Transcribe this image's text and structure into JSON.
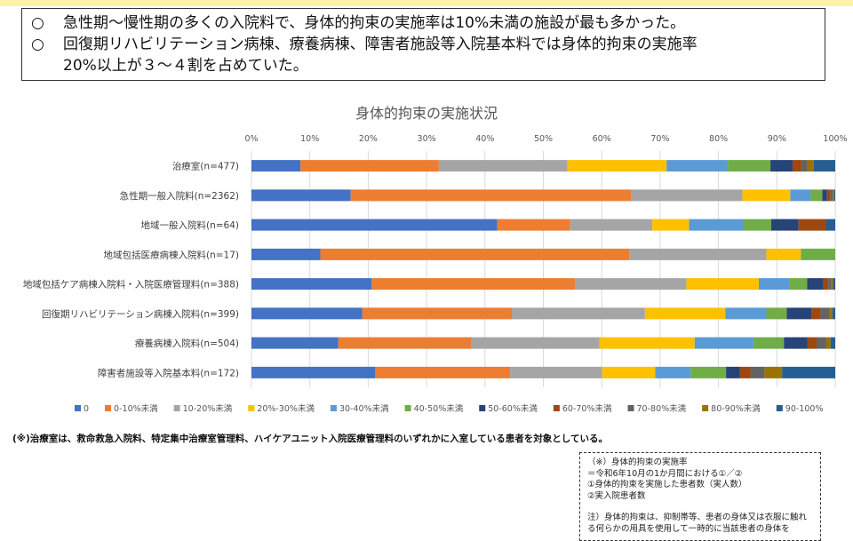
{
  "summary": {
    "bullet": "○",
    "line1": "急性期～慢性期の多くの入院料で、身体的拘束の実施率は10%未満の施設が最も多かった。",
    "line2": "回復期リハビリテーション病棟、療養病棟、障害者施設等入院基本料では身体的拘束の実施率",
    "line3": "20%以上が３～４割を占めていた。"
  },
  "footnote": "(※)治療室は、救命救急入院料、特定集中治療室管理料、ハイケアユニット入院医療管理料のいずれかに入室している患者を対象としている。",
  "notebox": {
    "l1": "（※）身体的拘束の実施率",
    "l2": "＝令和6年10月の1か月間における①／②",
    "l3": "①身体的拘束を実施した患者数（実人数）",
    "l4": "②実入院患者数",
    "l5": "注）身体的拘束は、抑制帯等、患者の身体又は衣服に触れる何らかの用具を使用して一時的に当該患者の身体を"
  },
  "colors": [
    "#4472c4",
    "#ed7d31",
    "#a5a5a5",
    "#ffc000",
    "#5b9bd5",
    "#70ad47",
    "#264478",
    "#9e480e",
    "#636363",
    "#997300",
    "#255e91"
  ],
  "chart_data": {
    "type": "bar",
    "orientation": "horizontal",
    "stacked": true,
    "normalized": true,
    "title": "身体的拘束の実施状況",
    "xlim": [
      0,
      100
    ],
    "xticks": [
      "0%",
      "10%",
      "20%",
      "30%",
      "40%",
      "50%",
      "60%",
      "70%",
      "80%",
      "90%",
      "100%"
    ],
    "legend_position": "bottom",
    "grid": true,
    "categories": [
      "治療室(n=477)",
      "急性期一般入院料(n=2362)",
      "地域一般入院料(n=64)",
      "地域包括医療病棟入院料(n=17)",
      "地域包括ケア病棟入院料・入院医療管理料(n=388)",
      "回復期リハビリテーション病棟入院料(n=399)",
      "療養病棟入院料(n=504)",
      "障害者施設等入院基本料(n=172)"
    ],
    "series": [
      {
        "name": "0",
        "values": [
          8.4,
          17.0,
          42.2,
          11.8,
          20.6,
          19.0,
          14.9,
          20.3
        ]
      },
      {
        "name": "0-10%未満",
        "values": [
          23.7,
          48.1,
          12.5,
          52.9,
          34.8,
          25.6,
          22.8,
          22.1
        ]
      },
      {
        "name": "10-20%未満",
        "values": [
          22.0,
          19.0,
          14.1,
          23.5,
          19.1,
          22.8,
          22.0,
          15.1
        ]
      },
      {
        "name": "20%-30%未満",
        "values": [
          17.0,
          8.2,
          6.3,
          5.9,
          12.4,
          13.8,
          16.3,
          8.7
        ]
      },
      {
        "name": "30-40%未満",
        "values": [
          10.5,
          3.5,
          9.4,
          0,
          5.2,
          7.0,
          10.1,
          5.8
        ]
      },
      {
        "name": "40-50%未満",
        "values": [
          7.3,
          2.0,
          4.7,
          5.9,
          3.1,
          3.5,
          5.2,
          5.8
        ]
      },
      {
        "name": "50-60%未満",
        "values": [
          3.8,
          0.8,
          4.7,
          0,
          2.8,
          4.3,
          4.0,
          2.3
        ]
      },
      {
        "name": "60-70%未満",
        "values": [
          1.5,
          0.6,
          4.7,
          0,
          0.8,
          1.5,
          1.6,
          1.7
        ]
      },
      {
        "name": "70-80%未満",
        "values": [
          1.0,
          0.4,
          0,
          0,
          0.5,
          1.5,
          1.6,
          2.3
        ]
      },
      {
        "name": "80-90%未満",
        "values": [
          1.1,
          0.2,
          0,
          0,
          0.3,
          0.5,
          0.8,
          2.9
        ]
      },
      {
        "name": "90-100%",
        "values": [
          3.7,
          0.2,
          1.6,
          0,
          0.4,
          0.5,
          0.8,
          8.7
        ]
      }
    ]
  }
}
